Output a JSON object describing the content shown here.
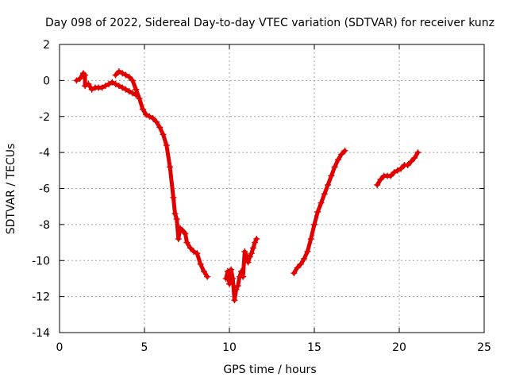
{
  "chart_data": {
    "type": "scatter",
    "title": "Day 098 of 2022, Sidereal Day-to-day VTEC variation (SDTVAR) for receiver kunz",
    "xlabel": "GPS time / hours",
    "ylabel": "SDTVAR / TECUs",
    "xlim": [
      0,
      25
    ],
    "ylim": [
      -14,
      2
    ],
    "xticks": [
      0,
      5,
      10,
      15,
      20,
      25
    ],
    "yticks": [
      2,
      0,
      -2,
      -4,
      -6,
      -8,
      -10,
      -12,
      -14
    ],
    "xtick_labels": [
      "0",
      "5",
      "10",
      "15",
      "20",
      "25"
    ],
    "ytick_labels": [
      "2",
      "0",
      "-2",
      "-4",
      "-6",
      "-8",
      "-10",
      "-12",
      "-14"
    ],
    "grid": true,
    "legend": "none",
    "color": "#e00000",
    "marker": "plus",
    "series": [
      {
        "name": "segment-1",
        "x": [
          1.0,
          1.2,
          1.4,
          1.5,
          1.5,
          1.7,
          1.9,
          2.1,
          2.3,
          2.5,
          2.7,
          2.9,
          3.1,
          3.3,
          3.5,
          3.7,
          3.9,
          4.1,
          4.3,
          4.5
        ],
        "y": [
          0.0,
          0.1,
          0.4,
          0.3,
          -0.3,
          -0.2,
          -0.5,
          -0.4,
          -0.4,
          -0.4,
          -0.3,
          -0.2,
          -0.1,
          -0.2,
          -0.3,
          -0.4,
          -0.5,
          -0.6,
          -0.7,
          -0.8
        ]
      },
      {
        "name": "segment-2",
        "x": [
          3.3,
          3.5,
          3.7,
          3.9,
          4.1,
          4.3,
          4.5,
          4.7,
          4.9,
          5.1,
          5.3,
          5.5,
          5.7,
          5.9,
          6.1,
          6.3,
          6.5,
          6.7,
          6.8,
          6.9,
          7.0,
          7.1,
          7.2,
          7.3,
          7.4,
          7.5,
          7.7,
          7.9,
          8.1,
          8.3,
          8.5,
          8.7
        ],
        "y": [
          0.3,
          0.5,
          0.4,
          0.3,
          0.2,
          0.0,
          -0.5,
          -1.0,
          -1.6,
          -1.9,
          -2.0,
          -2.1,
          -2.3,
          -2.6,
          -3.0,
          -3.6,
          -4.8,
          -6.5,
          -7.4,
          -7.7,
          -8.8,
          -8.2,
          -8.3,
          -8.4,
          -8.5,
          -9.0,
          -9.3,
          -9.5,
          -9.6,
          -10.2,
          -10.6,
          -10.9
        ]
      },
      {
        "name": "segment-3",
        "x": [
          9.8,
          9.9,
          10.0,
          10.1,
          10.2,
          10.3,
          10.4,
          10.5,
          10.6,
          10.7,
          10.8,
          10.9,
          11.0,
          11.1,
          11.2,
          11.3,
          11.4,
          11.5,
          11.6
        ],
        "y": [
          -11.0,
          -10.6,
          -11.3,
          -10.5,
          -11.0,
          -12.2,
          -11.6,
          -11.4,
          -10.9,
          -10.6,
          -10.9,
          -9.5,
          -9.7,
          -10.1,
          -9.8,
          -9.6,
          -9.3,
          -9.0,
          -8.8
        ]
      },
      {
        "name": "segment-4",
        "x": [
          13.8,
          14.0,
          14.2,
          14.4,
          14.6,
          14.8,
          15.0,
          15.2,
          15.4,
          15.6,
          15.8,
          16.0,
          16.2,
          16.4,
          16.6,
          16.8
        ],
        "y": [
          -10.7,
          -10.4,
          -10.2,
          -9.9,
          -9.5,
          -8.8,
          -8.0,
          -7.3,
          -6.8,
          -6.3,
          -5.8,
          -5.3,
          -4.8,
          -4.4,
          -4.1,
          -3.9
        ]
      },
      {
        "name": "segment-5",
        "x": [
          18.7,
          18.9,
          19.1,
          19.3,
          19.5,
          19.7,
          19.9,
          20.1,
          20.3,
          20.5,
          20.7,
          20.9,
          21.1
        ],
        "y": [
          -5.8,
          -5.5,
          -5.3,
          -5.3,
          -5.3,
          -5.1,
          -5.0,
          -4.9,
          -4.7,
          -4.7,
          -4.5,
          -4.3,
          -4.0
        ]
      }
    ]
  }
}
